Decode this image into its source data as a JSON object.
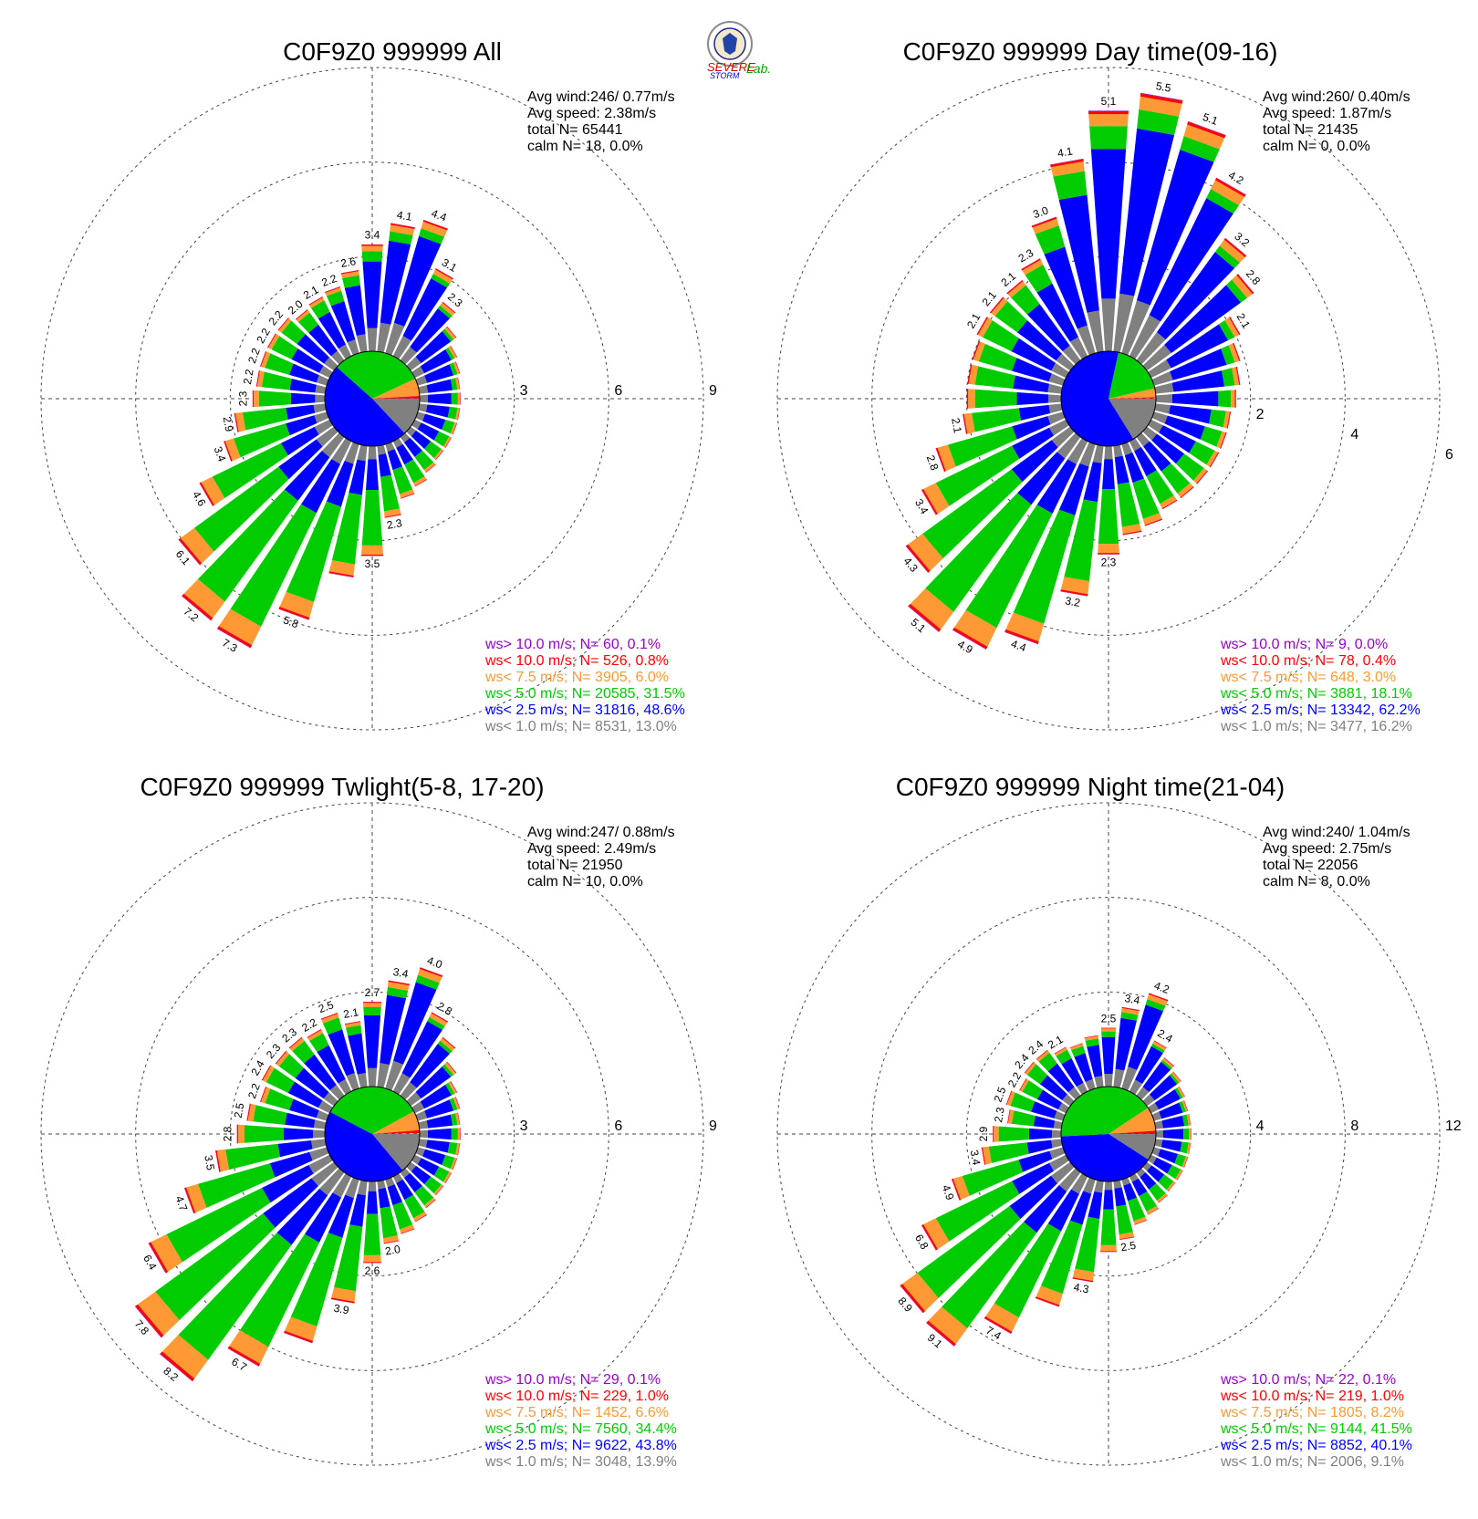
{
  "logo": {
    "text1": "SEVERE",
    "text2": "STORM",
    "text3": "Lab."
  },
  "colors": {
    "calm": "#808080",
    "lt1": "#808080",
    "lt2_5": "#0000ff",
    "lt5": "#00cc00",
    "lt7_5": "#ff9933",
    "lt10": "#ff0000",
    "gt10": "#9900cc"
  },
  "chart_data": [
    {
      "type": "rose",
      "title": "C0F9Z0 999999 All",
      "rmax": 9,
      "rings": [
        3,
        6,
        9
      ],
      "info": {
        "avg_wind": "Avg wind:246/ 0.77m/s",
        "avg_speed": "Avg speed: 2.38m/s",
        "total": "total N=      65441",
        "calm": "calm N=     18,   0.0%"
      },
      "legend": [
        {
          "text": "ws> 10.0 m/s; N=    60,  0.1%",
          "key": "gt10"
        },
        {
          "text": "ws< 10.0 m/s; N=   526,  0.8%",
          "key": "lt10"
        },
        {
          "text": "ws<  7.5 m/s; N=  3905,  6.0%",
          "key": "lt7_5"
        },
        {
          "text": "ws<  5.0 m/s; N= 20585, 31.5%",
          "key": "lt5"
        },
        {
          "text": "ws<  2.5 m/s; N= 31816, 48.6%",
          "key": "lt2_5"
        },
        {
          "text": "ws<  1.0 m/s; N=  8531, 13.0%",
          "key": "lt1"
        }
      ],
      "pie": [
        0.13,
        0.486,
        0.315,
        0.06,
        0.008,
        0.001
      ],
      "dir_totals": [
        3.4,
        4.1,
        4.4,
        3.1,
        2.3,
        1.8,
        1.5,
        1.4,
        1.3,
        1.3,
        1.3,
        1.3,
        1.3,
        1.3,
        1.4,
        1.6,
        1.8,
        2.3,
        3.5,
        4.2,
        5.8,
        7.3,
        7.2,
        6.1,
        4.6,
        3.4,
        2.9,
        2.3,
        2.2,
        2.2,
        2.2,
        2.2,
        2.0,
        2.1,
        2.2,
        2.6
      ],
      "labels": [
        {
          "i": 0,
          "text": "3.4"
        },
        {
          "i": 1,
          "text": "4.1"
        },
        {
          "i": 2,
          "text": "4.4"
        },
        {
          "i": 3,
          "text": "3.1"
        },
        {
          "i": 4,
          "text": "2.3"
        },
        {
          "i": 17,
          "text": "2.3"
        },
        {
          "i": 18,
          "text": "3.5"
        },
        {
          "i": 20,
          "text": "5.8"
        },
        {
          "i": 21,
          "text": "7.3"
        },
        {
          "i": 22,
          "text": "7.2"
        },
        {
          "i": 23,
          "text": "6.1"
        },
        {
          "i": 24,
          "text": "4.6"
        },
        {
          "i": 25,
          "text": "3.4"
        },
        {
          "i": 26,
          "text": "2.9"
        },
        {
          "i": 27,
          "text": "2.3"
        },
        {
          "i": 28,
          "text": "2.2"
        },
        {
          "i": 29,
          "text": "2.2"
        },
        {
          "i": 30,
          "text": "2.2"
        },
        {
          "i": 31,
          "text": "2.2"
        },
        {
          "i": 32,
          "text": "2.0"
        },
        {
          "i": 33,
          "text": "2.1"
        },
        {
          "i": 34,
          "text": "2.2"
        },
        {
          "i": 35,
          "text": "2.6"
        }
      ]
    },
    {
      "type": "rose",
      "title": "C0F9Z0 999999 Day time(09-16)",
      "rmax": 6,
      "rings": [
        2,
        4,
        6
      ],
      "info": {
        "avg_wind": "Avg wind:260/ 0.40m/s",
        "avg_speed": "Avg speed: 1.87m/s",
        "total": "total N=      21435",
        "calm": "calm N=      0,   0.0%"
      },
      "legend": [
        {
          "text": "ws> 10.0 m/s; N=     9,  0.0%",
          "key": "gt10"
        },
        {
          "text": "ws< 10.0 m/s; N=    78,  0.4%",
          "key": "lt10"
        },
        {
          "text": "ws<  7.5 m/s; N=   648,  3.0%",
          "key": "lt7_5"
        },
        {
          "text": "ws<  5.0 m/s; N=  3881, 18.1%",
          "key": "lt5"
        },
        {
          "text": "ws<  2.5 m/s; N= 13342, 62.2%",
          "key": "lt2_5"
        },
        {
          "text": "ws<  1.0 m/s; N=  3477, 16.2%",
          "key": "lt1"
        }
      ],
      "pie": [
        0.162,
        0.622,
        0.181,
        0.03,
        0.004,
        0.0
      ],
      "dir_totals": [
        5.1,
        5.5,
        5.1,
        4.2,
        3.2,
        2.8,
        2.1,
        1.9,
        1.8,
        1.7,
        1.6,
        1.6,
        1.6,
        1.6,
        1.6,
        1.6,
        1.8,
        1.9,
        2.3,
        3.2,
        4.4,
        4.9,
        5.1,
        4.3,
        3.4,
        2.8,
        2.1,
        2.0,
        2.0,
        2.0,
        2.1,
        2.1,
        2.1,
        2.3,
        3.0,
        4.1
      ],
      "labels": [
        {
          "i": 0,
          "text": "5.1"
        },
        {
          "i": 1,
          "text": "5.5"
        },
        {
          "i": 2,
          "text": "5.1"
        },
        {
          "i": 3,
          "text": "4.2"
        },
        {
          "i": 4,
          "text": "3.2"
        },
        {
          "i": 5,
          "text": "2.8"
        },
        {
          "i": 6,
          "text": "2.1"
        },
        {
          "i": 18,
          "text": "2.3"
        },
        {
          "i": 19,
          "text": "3.2"
        },
        {
          "i": 20,
          "text": "4.4"
        },
        {
          "i": 21,
          "text": "4.9"
        },
        {
          "i": 22,
          "text": "5.1"
        },
        {
          "i": 23,
          "text": "4.3"
        },
        {
          "i": 24,
          "text": "3.4"
        },
        {
          "i": 25,
          "text": "2.8"
        },
        {
          "i": 26,
          "text": "2.1"
        },
        {
          "i": 30,
          "text": "2.1"
        },
        {
          "i": 31,
          "text": "2.1"
        },
        {
          "i": 32,
          "text": "2.1"
        },
        {
          "i": 33,
          "text": "2.3"
        },
        {
          "i": 34,
          "text": "3.0"
        },
        {
          "i": 35,
          "text": "4.1"
        }
      ]
    },
    {
      "type": "rose",
      "title": "C0F9Z0 999999 Twlight(5-8, 17-20)",
      "rmax": 9,
      "rings": [
        3,
        6,
        9
      ],
      "info": {
        "avg_wind": "Avg wind:247/ 0.88m/s",
        "avg_speed": "Avg speed: 2.49m/s",
        "total": "total N=      21950",
        "calm": "calm N=     10,   0.0%"
      },
      "legend": [
        {
          "text": "ws> 10.0 m/s; N=    29,  0.1%",
          "key": "gt10"
        },
        {
          "text": "ws< 10.0 m/s; N=   229,  1.0%",
          "key": "lt10"
        },
        {
          "text": "ws<  7.5 m/s; N=  1452,  6.6%",
          "key": "lt7_5"
        },
        {
          "text": "ws<  5.0 m/s; N=  7560, 34.4%",
          "key": "lt5"
        },
        {
          "text": "ws<  2.5 m/s; N=  9622, 43.8%",
          "key": "lt2_5"
        },
        {
          "text": "ws<  1.0 m/s; N=  3048, 13.9%",
          "key": "lt1"
        }
      ],
      "pie": [
        0.139,
        0.438,
        0.344,
        0.066,
        0.01,
        0.001
      ],
      "dir_totals": [
        2.7,
        3.4,
        4.0,
        2.8,
        2.3,
        1.8,
        1.5,
        1.4,
        1.3,
        1.3,
        1.3,
        1.3,
        1.3,
        1.3,
        1.4,
        1.6,
        1.8,
        2.0,
        2.6,
        3.9,
        5.4,
        6.7,
        8.2,
        7.8,
        6.4,
        4.7,
        3.5,
        2.8,
        2.5,
        2.2,
        2.4,
        2.3,
        2.3,
        2.2,
        2.5,
        2.1
      ],
      "labels": [
        {
          "i": 0,
          "text": "2.7"
        },
        {
          "i": 1,
          "text": "3.4"
        },
        {
          "i": 2,
          "text": "4.0"
        },
        {
          "i": 3,
          "text": "2.8"
        },
        {
          "i": 17,
          "text": "2.0"
        },
        {
          "i": 18,
          "text": "2.6"
        },
        {
          "i": 19,
          "text": "3.9"
        },
        {
          "i": 21,
          "text": "6.7"
        },
        {
          "i": 22,
          "text": "8.2"
        },
        {
          "i": 23,
          "text": "7.8"
        },
        {
          "i": 24,
          "text": "6.4"
        },
        {
          "i": 25,
          "text": "4.7"
        },
        {
          "i": 26,
          "text": "3.5"
        },
        {
          "i": 27,
          "text": "2.8"
        },
        {
          "i": 28,
          "text": "2.5"
        },
        {
          "i": 29,
          "text": "2.2"
        },
        {
          "i": 30,
          "text": "2.4"
        },
        {
          "i": 31,
          "text": "2.3"
        },
        {
          "i": 32,
          "text": "2.3"
        },
        {
          "i": 33,
          "text": "2.2"
        },
        {
          "i": 34,
          "text": "2.5"
        },
        {
          "i": 35,
          "text": "2.1"
        }
      ]
    },
    {
      "type": "rose",
      "title": "C0F9Z0 999999 Night time(21-04)",
      "rmax": 12,
      "rings": [
        4,
        8,
        12
      ],
      "info": {
        "avg_wind": "Avg wind:240/ 1.04m/s",
        "avg_speed": "Avg speed: 2.75m/s",
        "total": "total N=      22056",
        "calm": "calm N=      8,   0.0%"
      },
      "legend": [
        {
          "text": "ws> 10.0 m/s; N=    22,  0.1%",
          "key": "gt10"
        },
        {
          "text": "ws< 10.0 m/s; N=   219,  1.0%",
          "key": "lt10"
        },
        {
          "text": "ws<  7.5 m/s; N=  1805,  8.2%",
          "key": "lt7_5"
        },
        {
          "text": "ws<  5.0 m/s; N=  9144, 41.5%",
          "key": "lt5"
        },
        {
          "text": "ws<  2.5 m/s; N=  8852, 40.1%",
          "key": "lt2_5"
        },
        {
          "text": "ws<  1.0 m/s; N=  2006,  9.1%",
          "key": "lt1"
        }
      ],
      "pie": [
        0.091,
        0.401,
        0.415,
        0.082,
        0.01,
        0.001
      ],
      "dir_totals": [
        2.5,
        3.4,
        4.2,
        2.4,
        2.0,
        1.8,
        1.6,
        1.5,
        1.5,
        1.5,
        1.5,
        1.5,
        1.5,
        1.5,
        1.6,
        1.8,
        2.0,
        2.5,
        3.0,
        4.3,
        5.6,
        7.4,
        9.1,
        8.9,
        6.8,
        4.9,
        3.4,
        2.9,
        2.3,
        2.5,
        2.2,
        2.4,
        2.4,
        2.1,
        2.0,
        2.2
      ],
      "labels": [
        {
          "i": 0,
          "text": "2.5"
        },
        {
          "i": 1,
          "text": "3.4"
        },
        {
          "i": 2,
          "text": "4.2"
        },
        {
          "i": 3,
          "text": "2.4"
        },
        {
          "i": 17,
          "text": "2.5"
        },
        {
          "i": 19,
          "text": "4.3"
        },
        {
          "i": 21,
          "text": "7.4"
        },
        {
          "i": 22,
          "text": "9.1"
        },
        {
          "i": 23,
          "text": "8.9"
        },
        {
          "i": 24,
          "text": "6.8"
        },
        {
          "i": 25,
          "text": "4.9"
        },
        {
          "i": 26,
          "text": "3.4"
        },
        {
          "i": 27,
          "text": "2.9"
        },
        {
          "i": 28,
          "text": "2.3"
        },
        {
          "i": 29,
          "text": "2.5"
        },
        {
          "i": 30,
          "text": "2.2"
        },
        {
          "i": 31,
          "text": "2.4"
        },
        {
          "i": 32,
          "text": "2.4"
        },
        {
          "i": 33,
          "text": "2.1"
        }
      ]
    }
  ]
}
